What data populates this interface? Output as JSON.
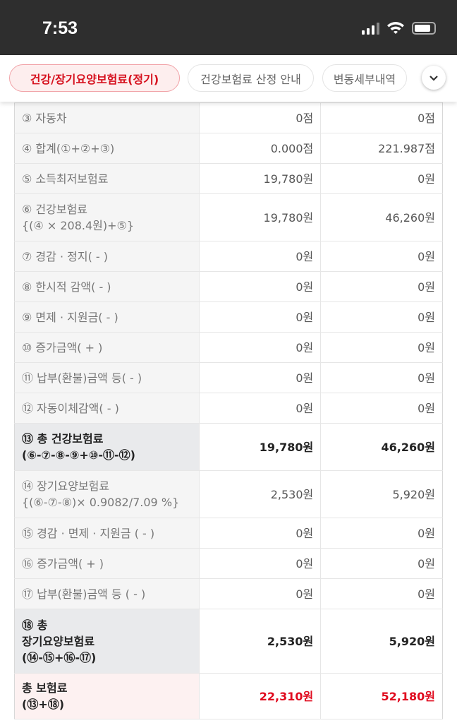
{
  "status_bar": {
    "time": "7:53"
  },
  "tabs": [
    {
      "label": "건강/장기요양보험료(정기)",
      "active": true
    },
    {
      "label": "건강보험료 산정 안내"
    },
    {
      "label": "변동세부내역"
    }
  ],
  "accent": "#e00b1f",
  "rows": [
    {
      "label": "③ 자동차",
      "v1": "0점",
      "v2": "0점"
    },
    {
      "label": "④ 합계(①+②+③)",
      "v1": "0.000점",
      "v2": "221.987점"
    },
    {
      "label": "⑤ 소득최저보험료",
      "v1": "19,780원",
      "v2": "0원"
    },
    {
      "label": "⑥ 건강보험료",
      "label2": "{(④ × 208.4원)+⑤}",
      "v1": "19,780원",
      "v2": "46,260원"
    },
    {
      "label": "⑦ 경감 · 정지( - )",
      "v1": "0원",
      "v2": "0원"
    },
    {
      "label": "⑧ 한시적 감액( - )",
      "v1": "0원",
      "v2": "0원"
    },
    {
      "label": "⑨ 면제 · 지원금( - )",
      "v1": "0원",
      "v2": "0원"
    },
    {
      "label": "⑩ 증가금액( + )",
      "v1": "0원",
      "v2": "0원"
    },
    {
      "label": "⑪ 납부(환불)금액 등( - )",
      "v1": "0원",
      "v2": "0원"
    },
    {
      "label": "⑫ 자동이체감액( - )",
      "v1": "0원",
      "v2": "0원"
    },
    {
      "label": "⑬ 총 건강보험료",
      "label2": "(⑥-⑦-⑧-⑨+⑩-⑪-⑫)",
      "v1": "19,780원",
      "v2": "46,260원"
    },
    {
      "label": "⑭ 장기요양보험료",
      "label2": "{(⑥-⑦-⑧)× 0.9082/7.09 %}",
      "v1": "2,530원",
      "v2": "5,920원"
    },
    {
      "label": "⑮ 경감 · 면제 · 지원금 ( - )",
      "v1": "0원",
      "v2": "0원"
    },
    {
      "label": "⑯ 증가금액( + )",
      "v1": "0원",
      "v2": "0원"
    },
    {
      "label": "⑰ 납부(환불)금액 등 ( - )",
      "v1": "0원",
      "v2": "0원"
    },
    {
      "label": "⑱ 총",
      "label2": "장기요양보험료",
      "label3": "(⑭-⑮+⑯-⑰)",
      "v1": "2,530원",
      "v2": "5,920원"
    },
    {
      "label": "총 보험료",
      "label2": "(⑬+⑱)",
      "v1": "22,310원",
      "v2": "52,180원"
    }
  ]
}
